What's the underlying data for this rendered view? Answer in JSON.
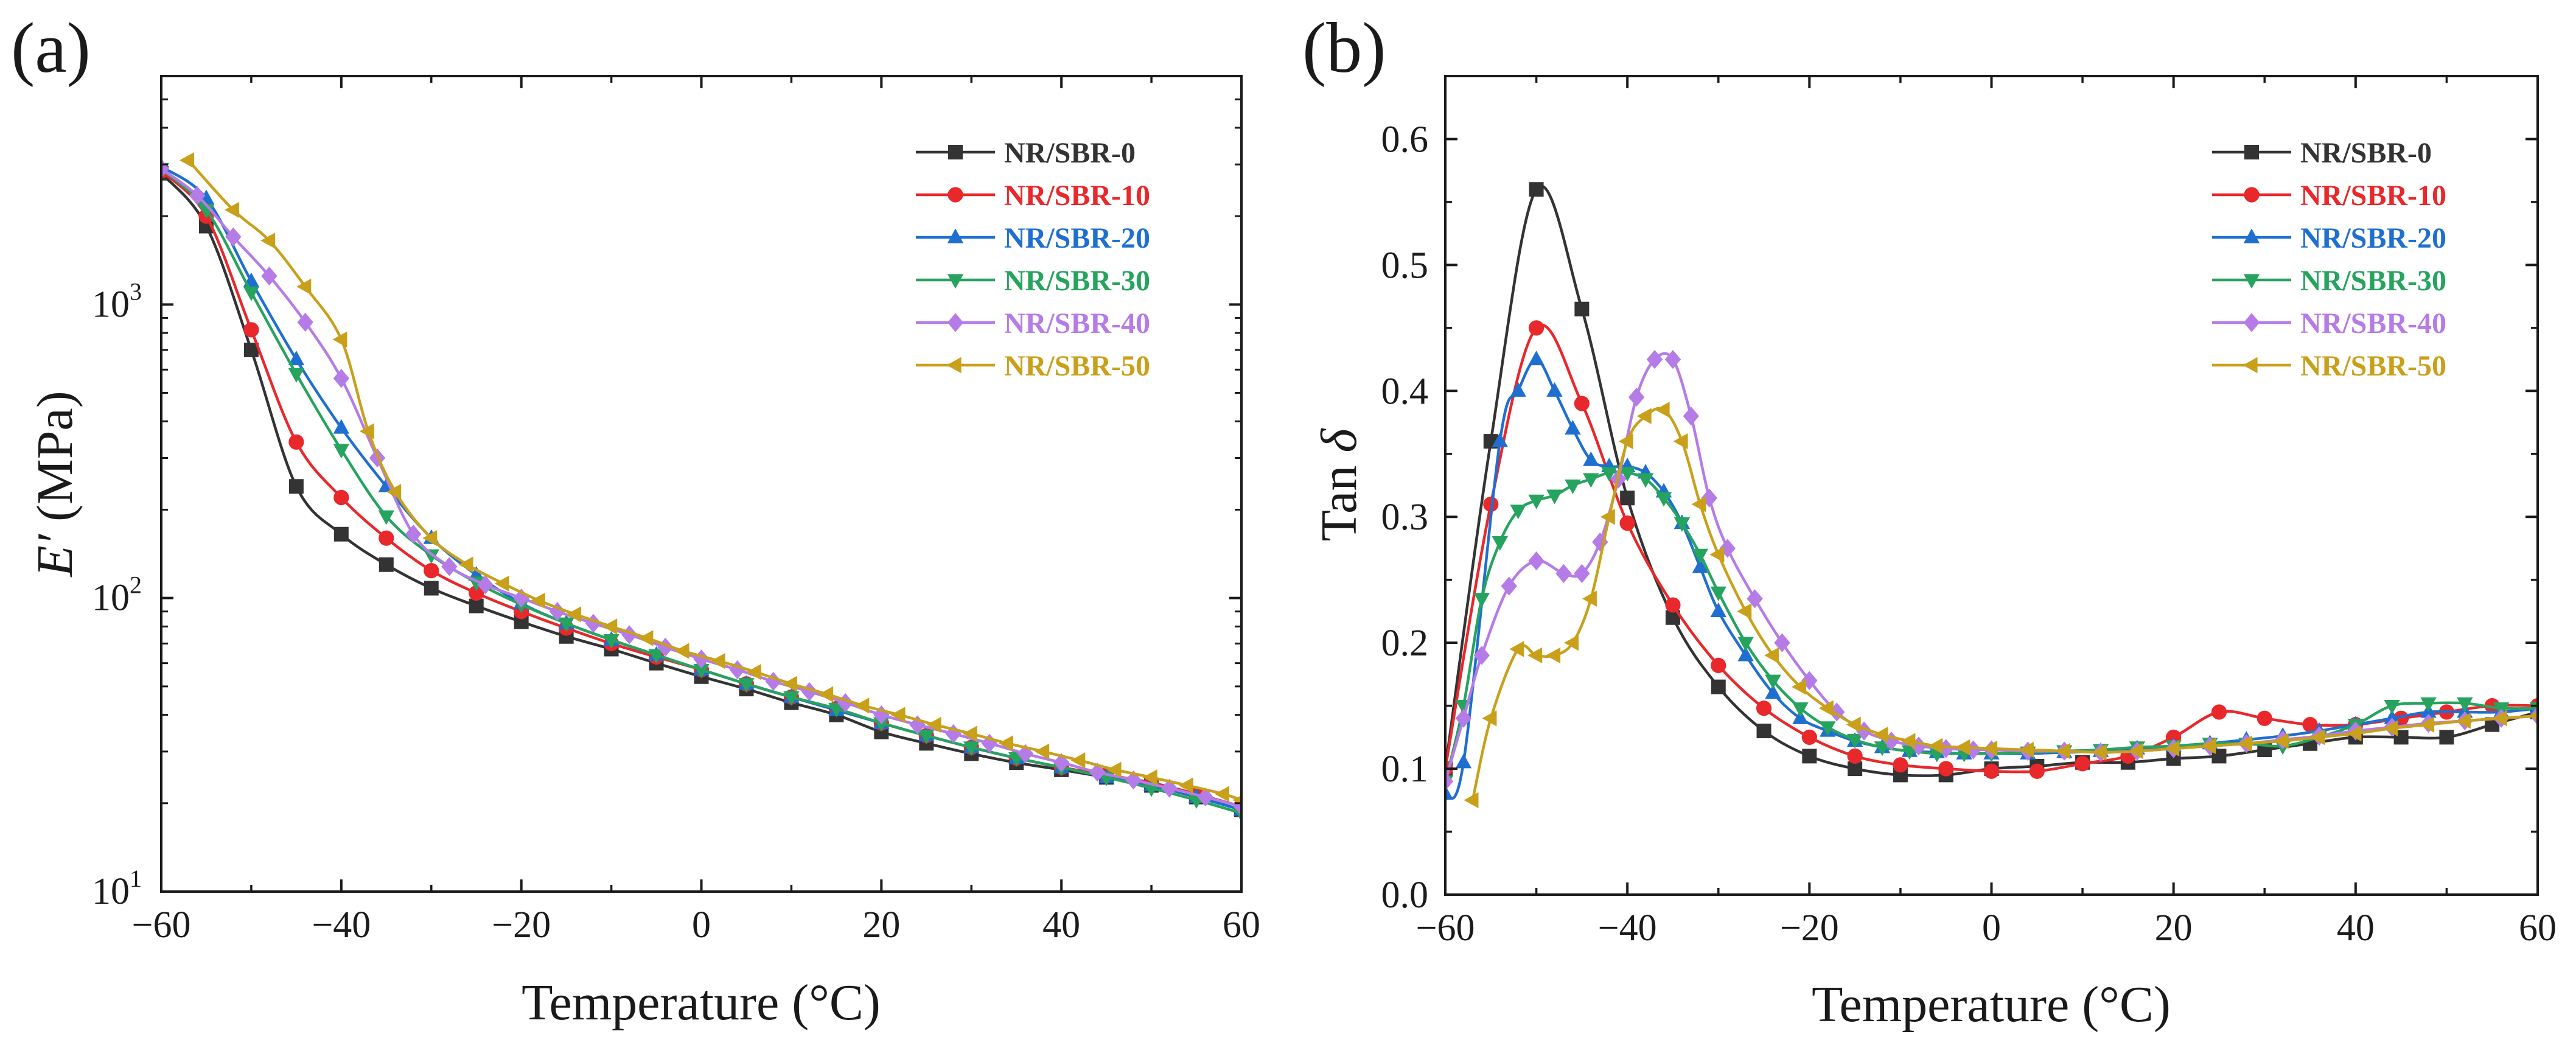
{
  "figure": {
    "panel_labels": [
      "(a)",
      "(b)"
    ]
  },
  "series_styles": [
    {
      "name": "NR/SBR-0",
      "color": "#333333",
      "marker": "square"
    },
    {
      "name": "NR/SBR-10",
      "color": "#e8282b",
      "marker": "circle"
    },
    {
      "name": "NR/SBR-20",
      "color": "#1f6fd1",
      "marker": "triangle-up"
    },
    {
      "name": "NR/SBR-30",
      "color": "#26a35f",
      "marker": "triangle-down"
    },
    {
      "name": "NR/SBR-40",
      "color": "#b57be6",
      "marker": "diamond"
    },
    {
      "name": "NR/SBR-50",
      "color": "#c9a01a",
      "marker": "triangle-left"
    }
  ],
  "chart_data": [
    {
      "type": "line",
      "panel_label": "(a)",
      "title": "",
      "xlabel": "Temperature (°C)",
      "ylabel_italic": "E′",
      "ylabel_rest": " (MPa)",
      "xlim": [
        -60,
        60
      ],
      "ylim": [
        10,
        6000
      ],
      "yscale": "log",
      "xticks": [
        -60,
        -40,
        -20,
        0,
        20,
        40,
        60
      ],
      "xtick_labels": [
        "−60",
        "−40",
        "−20",
        "0",
        "20",
        "40",
        "60"
      ],
      "yticks": [
        10,
        100,
        1000
      ],
      "ytick_base": "10",
      "ytick_exponents": [
        "1",
        "2",
        "3"
      ],
      "legend_position": "top-right",
      "series": [
        {
          "name": "NR/SBR-0",
          "x": [
            -60,
            -55,
            -50,
            -45,
            -40,
            -35,
            -30,
            -25,
            -20,
            -15,
            -10,
            -5,
            0,
            5,
            10,
            15,
            20,
            25,
            30,
            35,
            40,
            45,
            50,
            55,
            60
          ],
          "y": [
            2800,
            1850,
            700,
            240,
            165,
            130,
            108,
            94,
            83,
            74,
            67,
            60,
            54,
            49,
            44,
            40,
            35,
            32,
            29.5,
            27.5,
            26,
            24.5,
            23,
            21,
            19
          ]
        },
        {
          "name": "NR/SBR-10",
          "x": [
            -60,
            -55,
            -50,
            -45,
            -40,
            -35,
            -30,
            -25,
            -20,
            -15,
            -10,
            -5,
            0,
            5,
            10,
            15,
            20,
            25,
            30,
            35,
            40,
            45,
            50,
            55,
            60
          ],
          "y": [
            2850,
            2000,
            820,
            340,
            220,
            160,
            124,
            104,
            90,
            79,
            70,
            63,
            57,
            51,
            46,
            42,
            37.5,
            34,
            31,
            28.5,
            26.5,
            25,
            23.5,
            21.5,
            19.5
          ]
        },
        {
          "name": "NR/SBR-20",
          "x": [
            -60,
            -55,
            -50,
            -45,
            -40,
            -35,
            -30,
            -25,
            -20,
            -15,
            -10,
            -5,
            0,
            5,
            10,
            15,
            20,
            25,
            30,
            35,
            40,
            45,
            50,
            55,
            60
          ],
          "y": [
            2950,
            2300,
            1200,
            650,
            380,
            240,
            160,
            120,
            96,
            82,
            72,
            64,
            57,
            51,
            46,
            41.5,
            37.5,
            34,
            31,
            28.5,
            26.5,
            24.5,
            23,
            21,
            19
          ]
        },
        {
          "name": "NR/SBR-30",
          "x": [
            -60,
            -55,
            -50,
            -45,
            -40,
            -35,
            -30,
            -25,
            -20,
            -15,
            -10,
            -5,
            0,
            5,
            10,
            15,
            20,
            25,
            30,
            35,
            40,
            45,
            50,
            55,
            60
          ],
          "y": [
            2900,
            2100,
            1100,
            580,
            320,
            190,
            140,
            113,
            95,
            82,
            72,
            64,
            57,
            51,
            46,
            42,
            37.5,
            34,
            31,
            28.5,
            26.5,
            24.5,
            22.5,
            20.5,
            18.5
          ]
        },
        {
          "name": "NR/SBR-40",
          "x": [
            -60,
            -56,
            -52,
            -48,
            -44,
            -40,
            -36,
            -32,
            -28,
            -24,
            -20,
            -16,
            -12,
            -8,
            -4,
            0,
            4,
            8,
            12,
            16,
            20,
            24,
            28,
            32,
            36,
            40,
            44,
            48,
            52,
            56,
            60
          ],
          "y": [
            2900,
            2350,
            1700,
            1250,
            870,
            560,
            300,
            165,
            128,
            111,
            100,
            90,
            82,
            75,
            68,
            62,
            57,
            52,
            48,
            44,
            40,
            37,
            34.5,
            32,
            29.5,
            27.5,
            25.5,
            24,
            22.5,
            21,
            19.5
          ]
        },
        {
          "name": "NR/SBR-50",
          "x": [
            -57,
            -52,
            -48,
            -44,
            -40,
            -37,
            -34,
            -30,
            -26,
            -22,
            -18,
            -14,
            -10,
            -6,
            -2,
            2,
            6,
            10,
            14,
            18,
            22,
            26,
            30,
            34,
            38,
            42,
            46,
            50,
            54,
            58,
            60
          ],
          "y": [
            3100,
            2100,
            1650,
            1150,
            760,
            370,
            230,
            160,
            130,
            112,
            98,
            88,
            80,
            73,
            66,
            61,
            56,
            51,
            47,
            43,
            40,
            37,
            34.5,
            32,
            30,
            28,
            26,
            24.5,
            23,
            21.5,
            20.5
          ]
        }
      ]
    },
    {
      "type": "line",
      "panel_label": "(b)",
      "title": "",
      "xlabel": "Temperature (°C)",
      "ylabel_rest": "Tan ",
      "ylabel_italic": "δ",
      "xlim": [
        -60,
        60
      ],
      "ylim": [
        0.0,
        0.65
      ],
      "yscale": "linear",
      "xticks": [
        -60,
        -40,
        -20,
        0,
        20,
        40,
        60
      ],
      "xtick_labels": [
        "−60",
        "−40",
        "−20",
        "0",
        "20",
        "40",
        "60"
      ],
      "yticks": [
        0.0,
        0.1,
        0.2,
        0.3,
        0.4,
        0.5,
        0.6
      ],
      "ytick_labels": [
        "0.0",
        "0.1",
        "0.2",
        "0.3",
        "0.4",
        "0.5",
        "0.6"
      ],
      "legend_position": "top-right",
      "series": [
        {
          "name": "NR/SBR-0",
          "x": [
            -60,
            -55,
            -50,
            -45,
            -40,
            -35,
            -30,
            -25,
            -20,
            -15,
            -10,
            -5,
            0,
            5,
            10,
            15,
            20,
            25,
            30,
            35,
            40,
            45,
            50,
            55,
            60
          ],
          "y": [
            0.1,
            0.36,
            0.56,
            0.465,
            0.315,
            0.22,
            0.165,
            0.13,
            0.11,
            0.1,
            0.095,
            0.095,
            0.1,
            0.102,
            0.105,
            0.105,
            0.108,
            0.11,
            0.115,
            0.12,
            0.125,
            0.125,
            0.125,
            0.135,
            0.145
          ]
        },
        {
          "name": "NR/SBR-10",
          "x": [
            -60,
            -55,
            -50,
            -45,
            -40,
            -35,
            -30,
            -25,
            -20,
            -15,
            -10,
            -5,
            0,
            5,
            10,
            15,
            20,
            25,
            30,
            35,
            40,
            45,
            50,
            55,
            60
          ],
          "y": [
            0.1,
            0.31,
            0.45,
            0.39,
            0.295,
            0.23,
            0.182,
            0.148,
            0.125,
            0.11,
            0.103,
            0.1,
            0.098,
            0.098,
            0.104,
            0.11,
            0.125,
            0.145,
            0.14,
            0.135,
            0.135,
            0.14,
            0.145,
            0.15,
            0.15
          ]
        },
        {
          "name": "NR/SBR-20",
          "x": [
            -60,
            -58,
            -54,
            -52,
            -50,
            -48,
            -46,
            -44,
            -42,
            -40,
            -38,
            -36,
            -34,
            -32,
            -30,
            -27,
            -24,
            -21,
            -18,
            -15,
            -12,
            -9,
            -6,
            -3,
            0,
            4,
            8,
            12,
            16,
            20,
            24,
            28,
            32,
            36,
            40,
            44,
            48,
            52,
            56,
            60
          ],
          "y": [
            0.08,
            0.105,
            0.36,
            0.4,
            0.425,
            0.4,
            0.37,
            0.345,
            0.34,
            0.34,
            0.335,
            0.32,
            0.295,
            0.26,
            0.225,
            0.19,
            0.16,
            0.14,
            0.13,
            0.122,
            0.117,
            0.114,
            0.113,
            0.112,
            0.112,
            0.112,
            0.113,
            0.114,
            0.116,
            0.118,
            0.12,
            0.123,
            0.126,
            0.13,
            0.135,
            0.14,
            0.145,
            0.145,
            0.145,
            0.148
          ]
        },
        {
          "name": "NR/SBR-30",
          "x": [
            -60,
            -58,
            -56,
            -54,
            -52,
            -50,
            -48,
            -46,
            -44,
            -42,
            -40,
            -38,
            -36,
            -34,
            -32,
            -30,
            -27,
            -24,
            -21,
            -18,
            -15,
            -12,
            -9,
            -6,
            -3,
            0,
            4,
            8,
            12,
            16,
            20,
            24,
            28,
            32,
            36,
            40,
            44,
            48,
            52,
            56,
            60
          ],
          "y": [
            0.09,
            0.15,
            0.235,
            0.28,
            0.305,
            0.313,
            0.317,
            0.325,
            0.33,
            0.335,
            0.335,
            0.33,
            0.315,
            0.295,
            0.27,
            0.24,
            0.2,
            0.17,
            0.148,
            0.133,
            0.123,
            0.117,
            0.114,
            0.112,
            0.112,
            0.112,
            0.113,
            0.114,
            0.115,
            0.117,
            0.118,
            0.12,
            0.12,
            0.118,
            0.125,
            0.135,
            0.15,
            0.152,
            0.152,
            0.148,
            0.148
          ]
        },
        {
          "name": "NR/SBR-40",
          "x": [
            -60,
            -58,
            -56,
            -53,
            -50,
            -47,
            -45,
            -43,
            -41,
            -39,
            -37,
            -35,
            -33,
            -31,
            -29,
            -26,
            -23,
            -20,
            -17,
            -14,
            -11,
            -8,
            -5,
            -2,
            0,
            4,
            8,
            12,
            16,
            20,
            24,
            28,
            32,
            36,
            40,
            44,
            48,
            52,
            56,
            60
          ],
          "y": [
            0.09,
            0.14,
            0.19,
            0.245,
            0.265,
            0.255,
            0.255,
            0.28,
            0.33,
            0.395,
            0.425,
            0.425,
            0.38,
            0.315,
            0.275,
            0.235,
            0.2,
            0.17,
            0.145,
            0.13,
            0.122,
            0.118,
            0.116,
            0.115,
            0.115,
            0.114,
            0.114,
            0.113,
            0.114,
            0.116,
            0.118,
            0.12,
            0.123,
            0.126,
            0.13,
            0.133,
            0.136,
            0.138,
            0.14,
            0.142
          ]
        },
        {
          "name": "NR/SBR-50",
          "x": [
            -57,
            -55,
            -52,
            -50,
            -48,
            -46,
            -44,
            -42,
            -40,
            -38,
            -36,
            -34,
            -32,
            -30,
            -27,
            -24,
            -21,
            -18,
            -15,
            -12,
            -9,
            -6,
            -3,
            0,
            4,
            8,
            12,
            16,
            20,
            24,
            28,
            32,
            36,
            40,
            44,
            48,
            52,
            56,
            60
          ],
          "y": [
            0.075,
            0.14,
            0.195,
            0.19,
            0.19,
            0.2,
            0.235,
            0.3,
            0.36,
            0.38,
            0.385,
            0.36,
            0.31,
            0.27,
            0.225,
            0.19,
            0.165,
            0.148,
            0.135,
            0.127,
            0.122,
            0.118,
            0.117,
            0.116,
            0.115,
            0.114,
            0.113,
            0.114,
            0.116,
            0.118,
            0.12,
            0.122,
            0.125,
            0.128,
            0.132,
            0.135,
            0.138,
            0.14,
            0.142
          ]
        }
      ]
    }
  ]
}
